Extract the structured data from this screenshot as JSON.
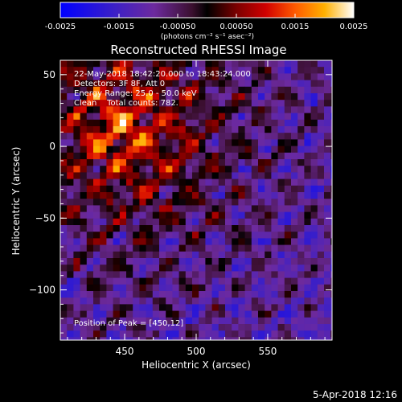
{
  "chart_data": {
    "type": "heatmap",
    "title": "Reconstructed RHESSI Image",
    "colorbar": {
      "ticks": [
        "-0.0025",
        "-0.0015",
        "-0.00050",
        "0.00050",
        "0.0015",
        "0.0025"
      ],
      "min": -0.0025,
      "max": 0.0025,
      "unit_label": "(photons cm⁻² s⁻¹ asec⁻²)"
    },
    "xlabel": "Heliocentric X (arcsec)",
    "ylabel": "Heliocentric Y (arcsec)",
    "xlim": [
      405,
      595
    ],
    "ylim": [
      -135,
      60
    ],
    "xticks": [
      "450",
      "500",
      "550"
    ],
    "yticks": [
      "50",
      "0",
      "−50",
      "−100"
    ],
    "peak": [
      450,
      12
    ],
    "annotations": {
      "time_range": "22-May-2018 18:42:20.000 to 18:43:24.000",
      "detectors": "Detectors: 3F 8F, Att 0",
      "energy": "Energy Range: 25.0 - 50.0 keV",
      "clean": "Clean    Total counts: 782.",
      "peak_text": "Position of Peak = [450,12]"
    },
    "footer_date": "5-Apr-2018 12:16"
  }
}
